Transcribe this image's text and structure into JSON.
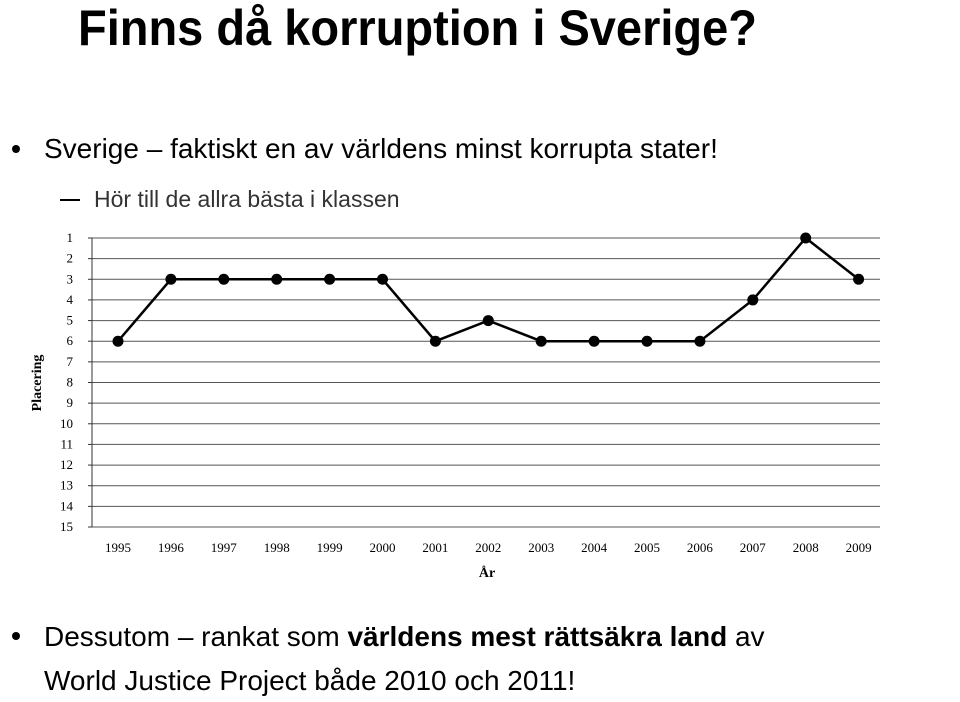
{
  "slide": {
    "title": "Finns då korruption i Sverige?",
    "bullet1": "Sverige – faktiskt en av världens minst korrupta stater!",
    "sub1": "Hör till de allra bästa i klassen",
    "bullet2_prefix": "Dessutom – rankat som ",
    "bullet2_bold": "världens mest rättsäkra land",
    "bullet2_suffix": " av",
    "bullet2_line2": "World Justice Project både 2010 och 2011!"
  },
  "chart_data": {
    "type": "line",
    "x": [
      "1995",
      "1996",
      "1997",
      "1998",
      "1999",
      "2000",
      "2001",
      "2002",
      "2003",
      "2004",
      "2005",
      "2006",
      "2007",
      "2008",
      "2009"
    ],
    "values": [
      6,
      3,
      3,
      3,
      3,
      3,
      6,
      5,
      6,
      6,
      6,
      6,
      4,
      1,
      3
    ],
    "xlabel": "År",
    "ylabel": "Placering",
    "ylim": [
      1,
      15
    ],
    "y_inverted": true,
    "yticks": [
      "1",
      "2",
      "3",
      "4",
      "5",
      "6",
      "7",
      "8",
      "9",
      "10",
      "11",
      "12",
      "13",
      "14",
      "15"
    ],
    "grid": true,
    "line_color": "#000000",
    "marker_color": "#000000"
  }
}
